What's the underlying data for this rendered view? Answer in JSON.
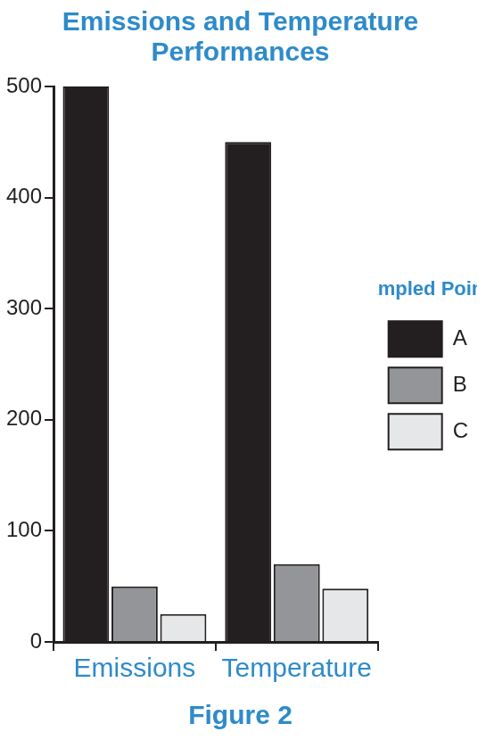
{
  "chart_data": {
    "type": "bar",
    "title": "Emissions and Temperature Performances",
    "caption": "Figure 2",
    "legend_title": "Sampled Points",
    "categories": [
      "Emissions",
      "Temperature"
    ],
    "series": [
      {
        "name": "A",
        "color": "#231f20",
        "values": [
          500,
          450
        ]
      },
      {
        "name": "B",
        "color": "#939598",
        "values": [
          50,
          70
        ]
      },
      {
        "name": "C",
        "color": "#e6e7e8",
        "values": [
          25,
          48
        ]
      }
    ],
    "ylim": [
      0,
      500
    ],
    "yticks": [
      0,
      100,
      200,
      300,
      400,
      500
    ],
    "grid": false,
    "legend": "right"
  }
}
